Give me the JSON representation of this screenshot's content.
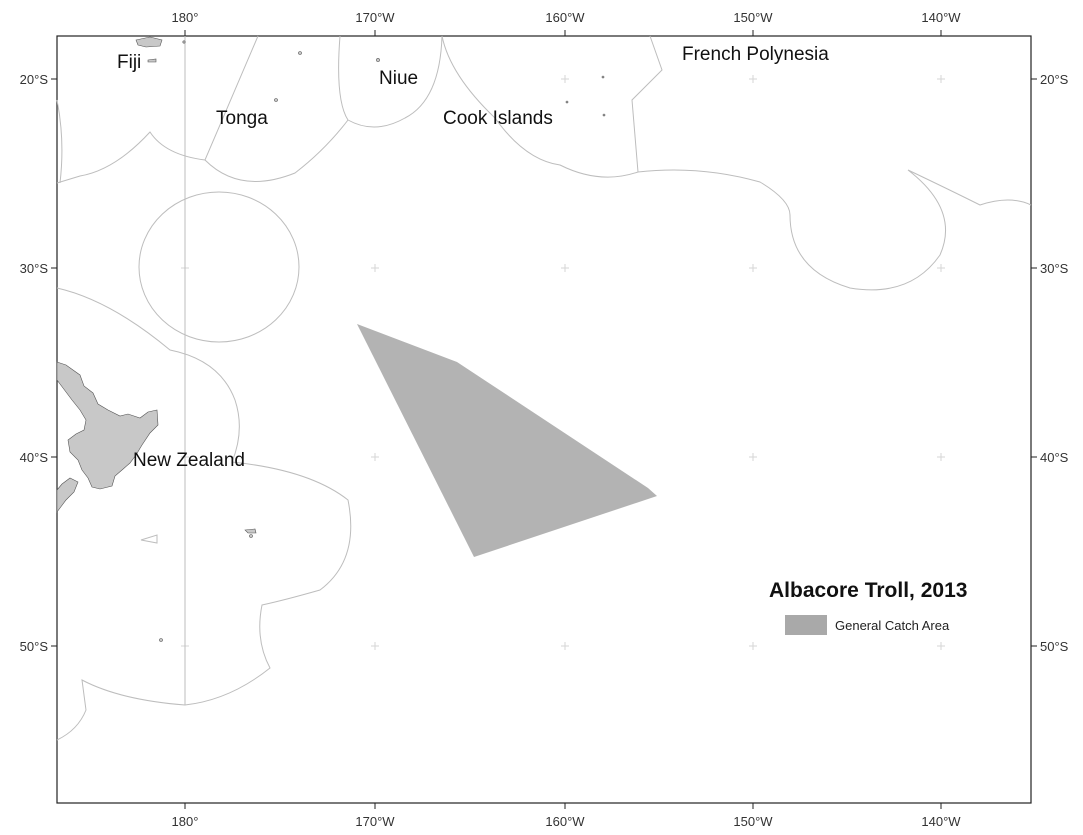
{
  "map": {
    "title": "Albacore Troll, 2013",
    "legend": {
      "label": "General Catch Area",
      "swatch_color": "#a9a9a9"
    },
    "longitude_labels": [
      "180°",
      "170°W",
      "160°W",
      "150°W",
      "140°W"
    ],
    "latitude_labels": [
      "20°S",
      "30°S",
      "40°S",
      "50°S"
    ],
    "places": {
      "fiji": "Fiji",
      "tonga": "Tonga",
      "niue": "Niue",
      "cook_islands": "Cook Islands",
      "french_polynesia": "French Polynesia",
      "new_zealand": "New Zealand"
    },
    "colors": {
      "land": "#c8c8c8",
      "catch_area": "#b3b3b3",
      "eez_boundary": "#bdbdbd",
      "frame": "#222222"
    }
  }
}
